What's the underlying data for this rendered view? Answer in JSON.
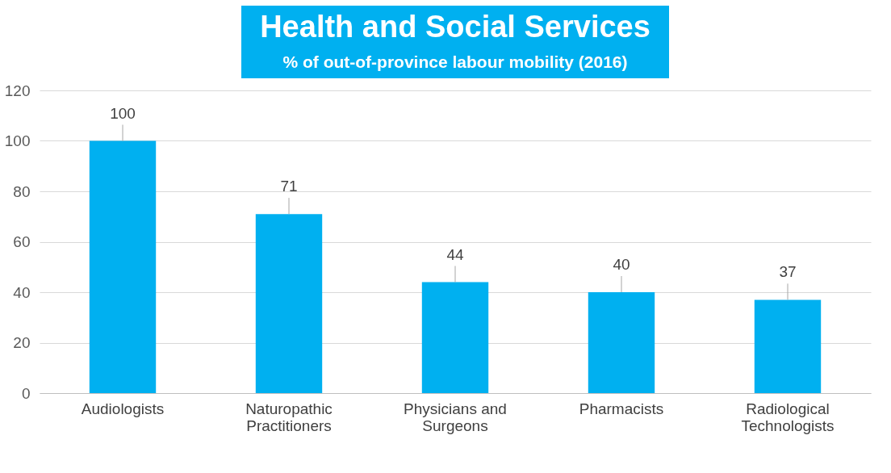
{
  "chart_data": {
    "type": "bar",
    "title": "Health and Social Services",
    "subtitle": "% of out-of-province labour mobility (2016)",
    "categories": [
      "Audiologists",
      "Naturopathic Practitioners",
      "Physicians and Surgeons",
      "Pharmacists",
      "Radiological Technologists"
    ],
    "values": [
      100,
      71,
      44,
      40,
      37
    ],
    "color": "#00b0f0",
    "ylim": [
      0,
      120
    ],
    "yticks": [
      0,
      20,
      40,
      60,
      80,
      100,
      120
    ],
    "grid": "y",
    "data_labels": true
  }
}
